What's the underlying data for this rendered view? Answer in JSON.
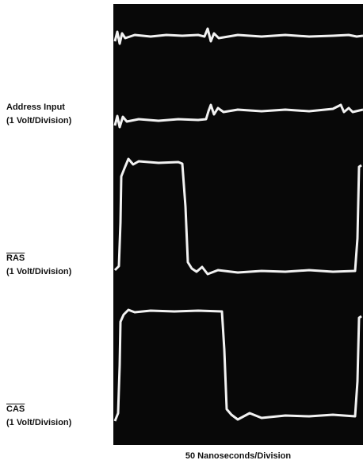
{
  "signals": [
    {
      "name": "Address Input",
      "scale": "(1 Volt/Division)"
    },
    {
      "name": "RAS",
      "scale": "(1 Volt/Division)"
    },
    {
      "name": "CAS",
      "scale": "(1 Volt/Division)"
    }
  ],
  "time_scale": "50 Nanoseconds/Division"
}
